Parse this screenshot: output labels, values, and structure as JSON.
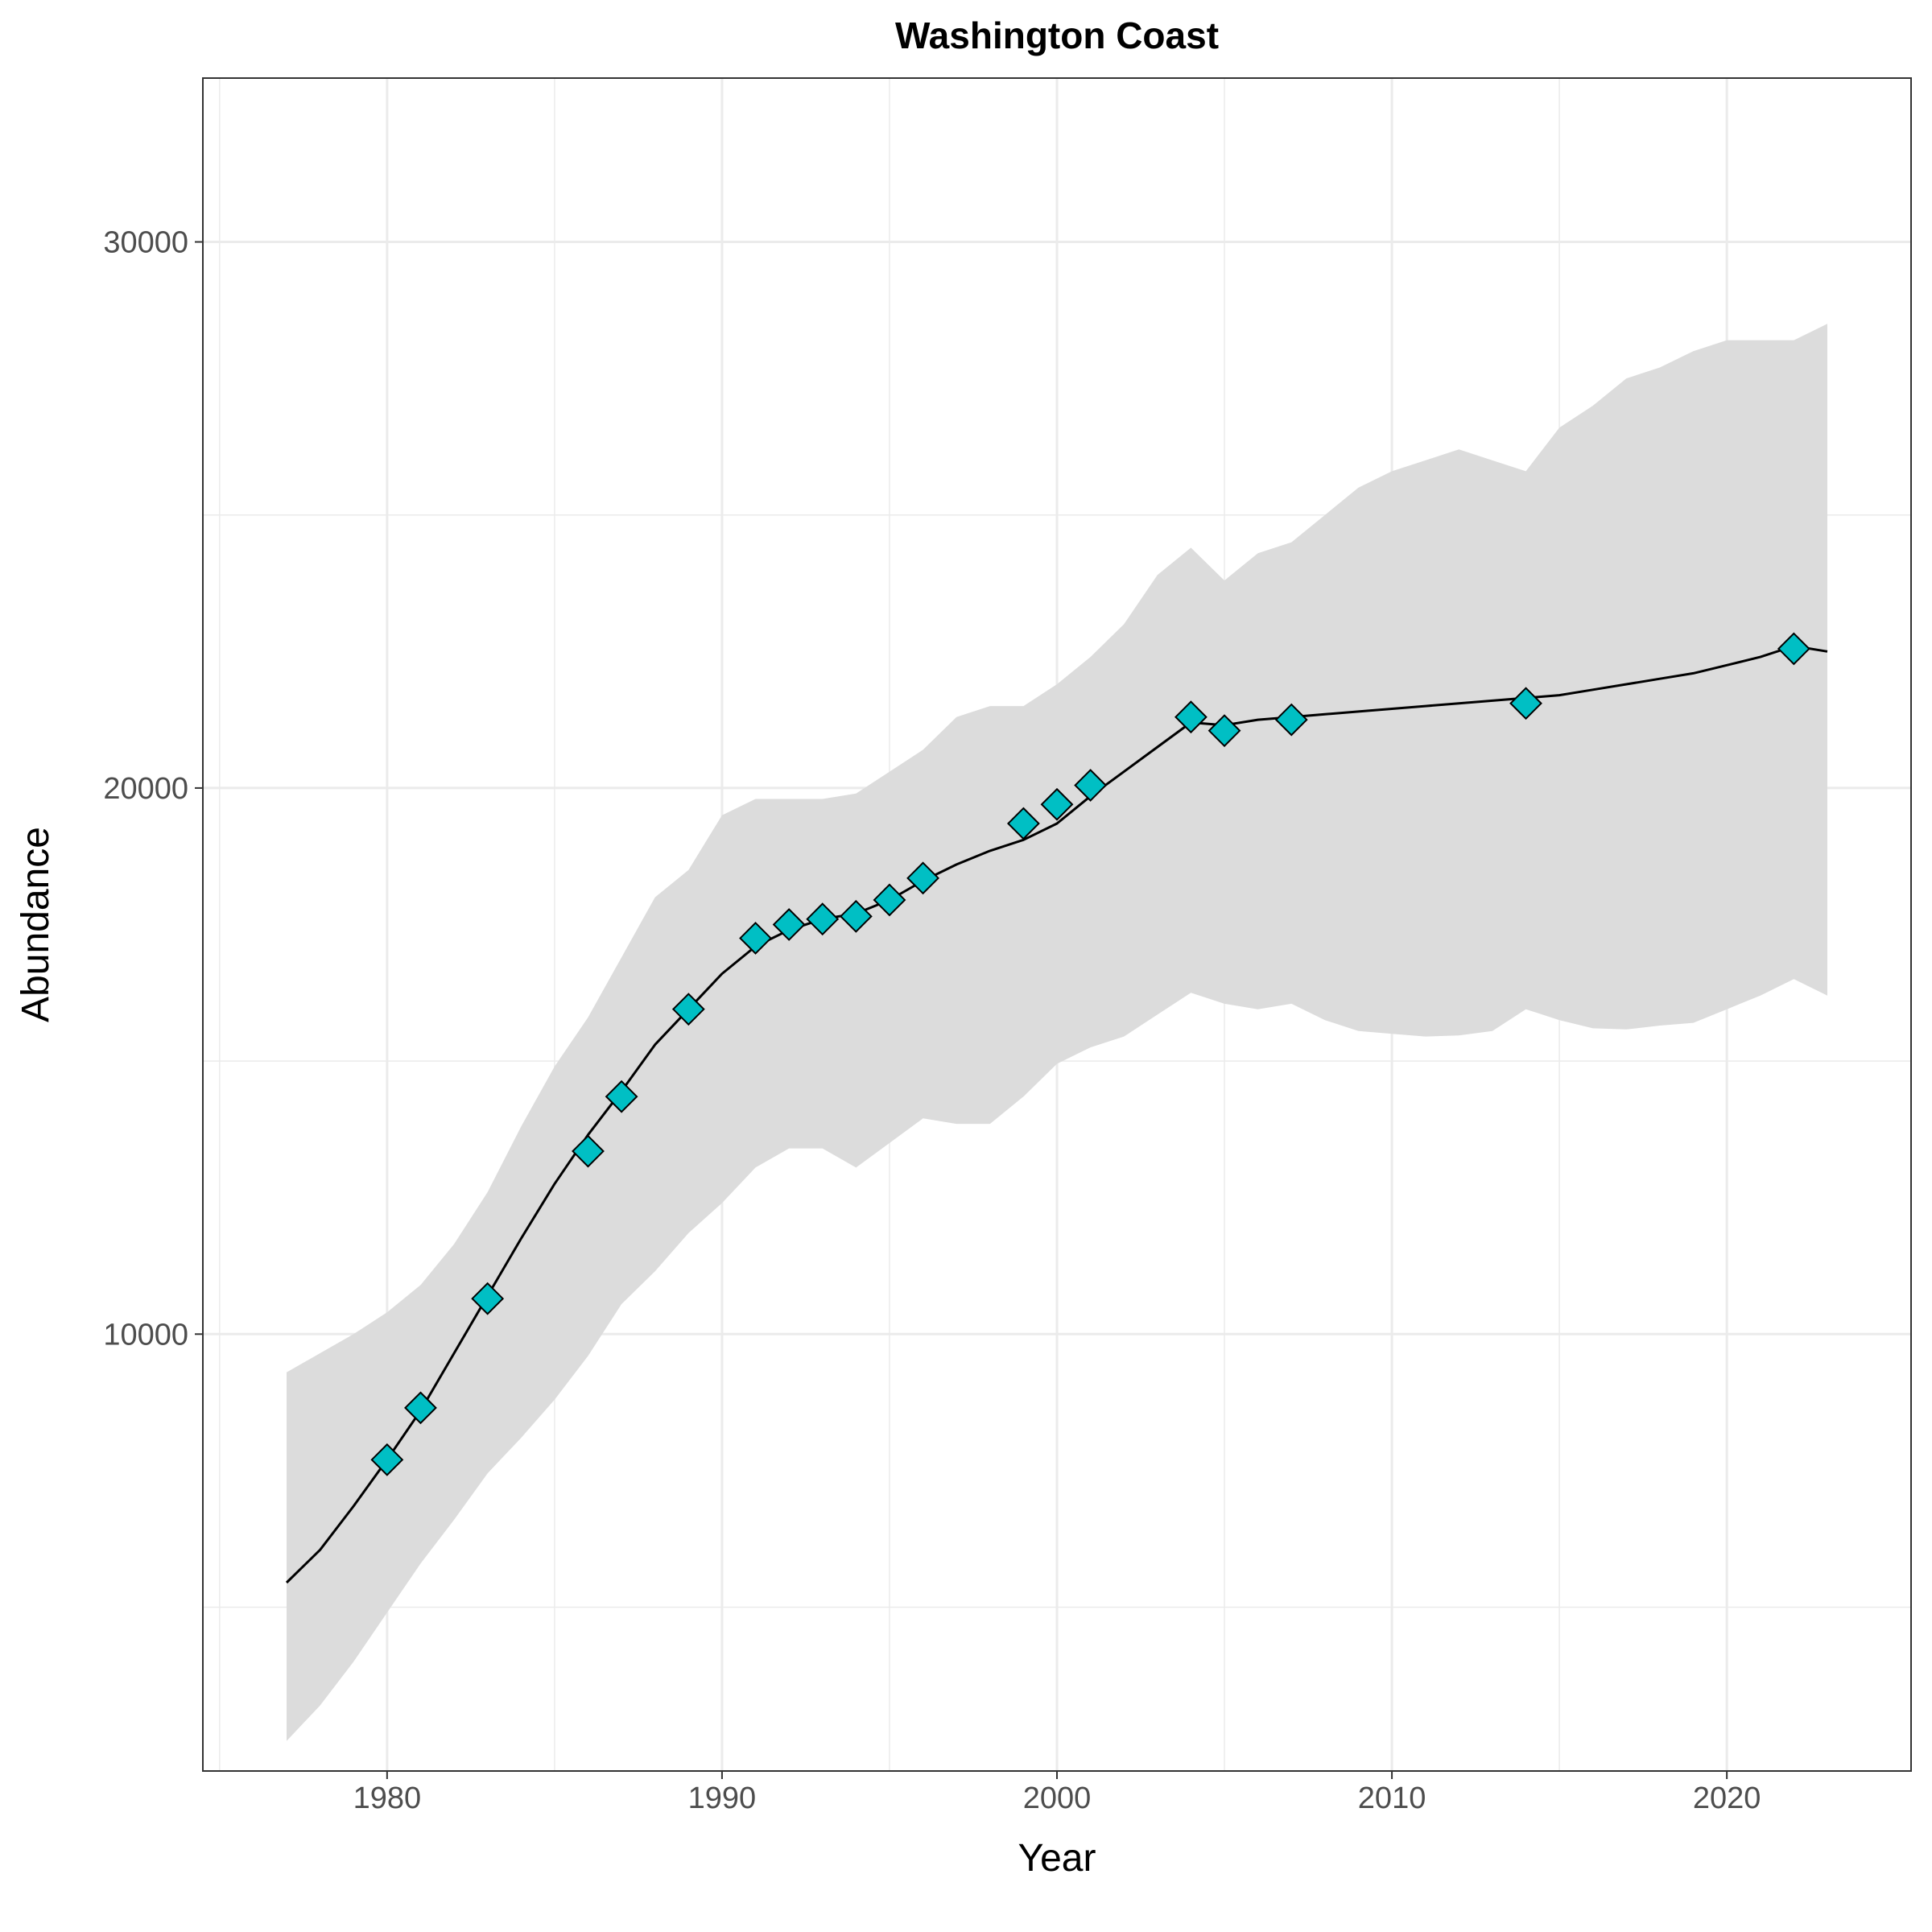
{
  "chart_data": {
    "type": "line",
    "title": "Washington Coast",
    "xlabel": "Year",
    "ylabel": "Abundance",
    "xlim": [
      1974.5,
      2025.5
    ],
    "ylim": [
      2000,
      33000
    ],
    "x_ticks": [
      1980,
      1990,
      2000,
      2010,
      2020
    ],
    "x_minor_ticks": [
      1975,
      1985,
      1995,
      2005,
      2015
    ],
    "y_ticks": [
      10000,
      20000,
      30000
    ],
    "y_minor_ticks": [
      5000,
      15000,
      25000
    ],
    "grid": true,
    "colors": {
      "band": "#dcdcdc",
      "line": "#000000",
      "marker_fill": "#00bfc4",
      "marker_edge": "#000000",
      "grid": "#ebebeb",
      "panel_border": "#333333"
    },
    "series": [
      {
        "kind": "confidence_band",
        "x": [
          1977,
          1978,
          1979,
          1980,
          1981,
          1982,
          1983,
          1984,
          1985,
          1986,
          1987,
          1988,
          1989,
          1990,
          1991,
          1992,
          1993,
          1994,
          1995,
          1996,
          1997,
          1998,
          1999,
          2000,
          2001,
          2002,
          2003,
          2004,
          2005,
          2006,
          2007,
          2008,
          2009,
          2010,
          2011,
          2012,
          2013,
          2014,
          2015,
          2016,
          2017,
          2018,
          2019,
          2020,
          2021,
          2022,
          2023
        ],
        "lower": [
          2550,
          3200,
          4000,
          4900,
          5800,
          6600,
          7450,
          8100,
          8800,
          9600,
          10550,
          11150,
          11850,
          12400,
          13050,
          13400,
          13400,
          13050,
          13500,
          13950,
          13850,
          13850,
          14350,
          14950,
          15250,
          15450,
          15850,
          16250,
          16050,
          15950,
          16050,
          15750,
          15550,
          15500,
          15450,
          15470,
          15550,
          15950,
          15750,
          15600,
          15580,
          15650,
          15700,
          15950,
          16200,
          16500,
          16200
        ],
        "upper": [
          9300,
          9650,
          10000,
          10400,
          10900,
          11650,
          12600,
          13800,
          14900,
          15800,
          16900,
          18000,
          18500,
          19500,
          19800,
          19800,
          19800,
          19900,
          20300,
          20700,
          21300,
          21500,
          21500,
          21900,
          22400,
          23000,
          23900,
          24400,
          23800,
          24300,
          24500,
          25000,
          25500,
          25800,
          26000,
          26200,
          26000,
          25800,
          26600,
          27000,
          27500,
          27700,
          28000,
          28200,
          28200,
          28200,
          28500
        ]
      },
      {
        "kind": "line",
        "x": [
          1977,
          1978,
          1979,
          1980,
          1981,
          1982,
          1983,
          1984,
          1985,
          1986,
          1987,
          1988,
          1989,
          1990,
          1991,
          1992,
          1993,
          1994,
          1995,
          1996,
          1997,
          1998,
          1999,
          2000,
          2001,
          2002,
          2003,
          2004,
          2005,
          2006,
          2007,
          2008,
          2009,
          2010,
          2011,
          2012,
          2013,
          2014,
          2015,
          2016,
          2017,
          2018,
          2019,
          2020,
          2021,
          2022,
          2023
        ],
        "values": [
          5450,
          6050,
          6850,
          7700,
          8600,
          9650,
          10700,
          11750,
          12750,
          13650,
          14450,
          15300,
          15950,
          16600,
          17100,
          17400,
          17600,
          17700,
          17950,
          18300,
          18600,
          18850,
          19050,
          19350,
          19850,
          20300,
          20750,
          21200,
          21150,
          21250,
          21300,
          21350,
          21400,
          21450,
          21500,
          21550,
          21600,
          21650,
          21700,
          21800,
          21900,
          22000,
          22100,
          22250,
          22400,
          22600,
          22500
        ]
      },
      {
        "kind": "points",
        "marker": "diamond",
        "x": [
          1980,
          1981,
          1983,
          1986,
          1987,
          1989,
          1991,
          1992,
          1993,
          1994,
          1995,
          1996,
          1999,
          2000,
          2001,
          2004,
          2005,
          2007,
          2014,
          2022
        ],
        "values": [
          7700,
          8650,
          10650,
          13350,
          14350,
          15950,
          17250,
          17500,
          17600,
          17650,
          17950,
          18350,
          19350,
          19700,
          20050,
          21300,
          21050,
          21250,
          21550,
          22550
        ]
      }
    ]
  }
}
